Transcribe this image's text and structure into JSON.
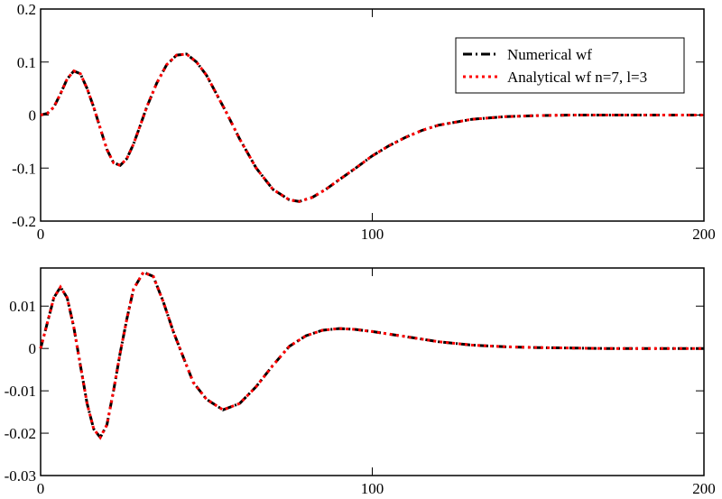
{
  "chart_data": [
    {
      "type": "line",
      "x": [
        0,
        2,
        4,
        6,
        8,
        10,
        12,
        14,
        16,
        18,
        20,
        22,
        24,
        26,
        28,
        30,
        32,
        35,
        38,
        41,
        44,
        47,
        50,
        53,
        56,
        60,
        65,
        70,
        75,
        78,
        82,
        86,
        90,
        95,
        100,
        105,
        110,
        115,
        120,
        130,
        140,
        150,
        160,
        180,
        200
      ],
      "series": [
        {
          "name": "Numerical wf",
          "color": "#000000",
          "style": "dash-dot",
          "values": [
            0,
            0.003,
            0.015,
            0.04,
            0.068,
            0.083,
            0.078,
            0.05,
            0.015,
            -0.025,
            -0.065,
            -0.09,
            -0.095,
            -0.082,
            -0.055,
            -0.02,
            0.015,
            0.06,
            0.095,
            0.113,
            0.115,
            0.1,
            0.075,
            0.04,
            0.005,
            -0.045,
            -0.1,
            -0.14,
            -0.16,
            -0.163,
            -0.155,
            -0.14,
            -0.122,
            -0.1,
            -0.077,
            -0.058,
            -0.042,
            -0.029,
            -0.019,
            -0.008,
            -0.003,
            -0.001,
            0,
            0,
            0
          ]
        },
        {
          "name": "Analytical wf n=7, l=3",
          "color": "#ff0000",
          "style": "dotted",
          "values": [
            0,
            0.003,
            0.015,
            0.04,
            0.068,
            0.083,
            0.078,
            0.05,
            0.015,
            -0.025,
            -0.065,
            -0.09,
            -0.095,
            -0.082,
            -0.055,
            -0.02,
            0.015,
            0.06,
            0.095,
            0.113,
            0.115,
            0.1,
            0.075,
            0.04,
            0.005,
            -0.045,
            -0.1,
            -0.14,
            -0.16,
            -0.163,
            -0.155,
            -0.14,
            -0.122,
            -0.1,
            -0.077,
            -0.058,
            -0.042,
            -0.029,
            -0.019,
            -0.008,
            -0.003,
            -0.001,
            0,
            0,
            0
          ]
        }
      ],
      "xlim": [
        0,
        200
      ],
      "xticks": [
        0,
        100,
        200
      ],
      "ylim": [
        -0.2,
        0.2
      ],
      "yticks": [
        0.2,
        0.1,
        0,
        -0.1,
        -0.2
      ],
      "legend": "upper right"
    },
    {
      "type": "line",
      "x": [
        0,
        2,
        4,
        6,
        8,
        10,
        12,
        14,
        16,
        18,
        20,
        22,
        24,
        26,
        28,
        31,
        34,
        37,
        40,
        43,
        46,
        50,
        55,
        60,
        65,
        70,
        75,
        80,
        85,
        90,
        95,
        100,
        110,
        120,
        130,
        140,
        150,
        170,
        200
      ],
      "series": [
        {
          "color": "#000000",
          "style": "dash-dot",
          "values": [
            0,
            0.006,
            0.012,
            0.0145,
            0.012,
            0.005,
            -0.004,
            -0.013,
            -0.019,
            -0.021,
            -0.018,
            -0.01,
            -0.001,
            0.007,
            0.014,
            0.018,
            0.017,
            0.011,
            0.004,
            -0.002,
            -0.008,
            -0.012,
            -0.0145,
            -0.013,
            -0.009,
            -0.004,
            0.0005,
            0.003,
            0.0043,
            0.0047,
            0.0045,
            0.004,
            0.0028,
            0.0016,
            0.0008,
            0.0004,
            0.0002,
            0,
            0
          ]
        },
        {
          "color": "#ff0000",
          "style": "dotted",
          "values": [
            0,
            0.006,
            0.012,
            0.0145,
            0.012,
            0.005,
            -0.004,
            -0.013,
            -0.019,
            -0.021,
            -0.018,
            -0.01,
            -0.001,
            0.007,
            0.014,
            0.018,
            0.017,
            0.011,
            0.004,
            -0.002,
            -0.008,
            -0.012,
            -0.0145,
            -0.013,
            -0.009,
            -0.004,
            0.0005,
            0.003,
            0.0043,
            0.0047,
            0.0045,
            0.004,
            0.0028,
            0.0016,
            0.0008,
            0.0004,
            0.0002,
            0,
            0
          ]
        }
      ],
      "xlim": [
        0,
        200
      ],
      "xticks": [
        0,
        100,
        200
      ],
      "ylim": [
        -0.03,
        0.019
      ],
      "yticks": [
        0.01,
        0,
        -0.01,
        -0.02,
        -0.03
      ]
    }
  ]
}
